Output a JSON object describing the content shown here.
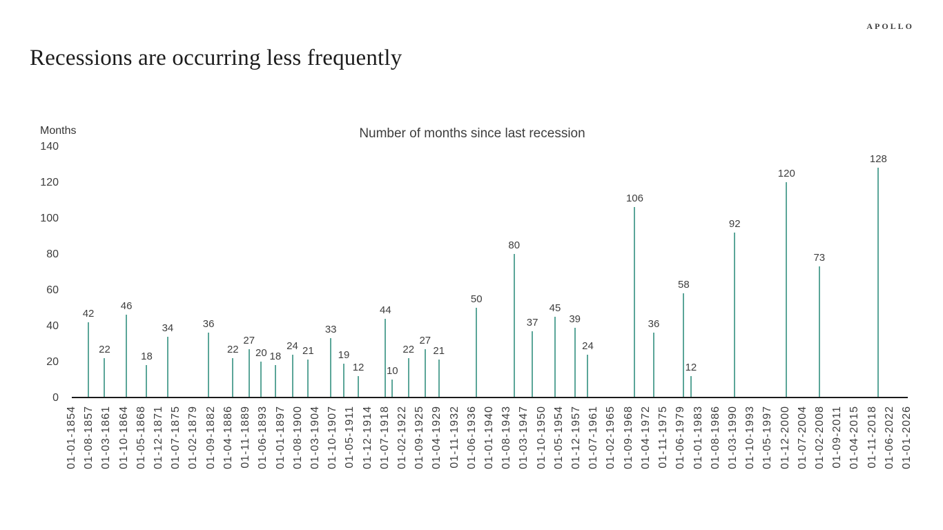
{
  "logo": "APOLLO",
  "page_title": "Recessions are occurring less frequently",
  "chart_data": {
    "type": "bar",
    "title": "Number of months since last recession",
    "y_axis_title": "Months",
    "xlabel": "",
    "ylabel": "Months",
    "ylim": [
      0,
      140
    ],
    "y_ticks": [
      0,
      20,
      40,
      60,
      80,
      100,
      120,
      140
    ],
    "grid": false,
    "legend": false,
    "bar_color": "#5aa598",
    "axis_line_color": "#1a1a1a",
    "x_axis": {
      "start_label": "01-01-1854",
      "end_label": "01-01-2026",
      "total_months": 2064,
      "tick_interval_months": 43,
      "tick_labels": [
        "01-01-1854",
        "01-08-1857",
        "01-03-1861",
        "01-10-1864",
        "01-05-1868",
        "01-12-1871",
        "01-07-1875",
        "01-02-1879",
        "01-09-1882",
        "01-04-1886",
        "01-11-1889",
        "01-06-1893",
        "01-01-1897",
        "01-08-1900",
        "01-03-1904",
        "01-10-1907",
        "01-05-1911",
        "01-12-1914",
        "01-07-1918",
        "01-02-1922",
        "01-09-1925",
        "01-04-1929",
        "01-11-1932",
        "01-06-1936",
        "01-01-1940",
        "01-08-1943",
        "01-03-1947",
        "01-10-1950",
        "01-05-1954",
        "01-12-1957",
        "01-07-1961",
        "01-02-1965",
        "01-09-1968",
        "01-04-1972",
        "01-11-1975",
        "01-06-1979",
        "01-01-1983",
        "01-08-1986",
        "01-03-1990",
        "01-10-1993",
        "01-05-1997",
        "01-12-2000",
        "01-07-2004",
        "01-02-2008",
        "01-09-2011",
        "01-04-2015",
        "01-11-2018",
        "01-06-2022",
        "01-01-2026"
      ]
    },
    "bars": [
      {
        "month_offset": 41,
        "value": 42
      },
      {
        "month_offset": 81,
        "value": 22
      },
      {
        "month_offset": 135,
        "value": 46
      },
      {
        "month_offset": 185,
        "value": 18
      },
      {
        "month_offset": 237,
        "value": 34
      },
      {
        "month_offset": 338,
        "value": 36
      },
      {
        "month_offset": 398,
        "value": 22
      },
      {
        "month_offset": 438,
        "value": 27
      },
      {
        "month_offset": 468,
        "value": 20
      },
      {
        "month_offset": 503,
        "value": 18
      },
      {
        "month_offset": 545,
        "value": 24
      },
      {
        "month_offset": 584,
        "value": 21
      },
      {
        "month_offset": 640,
        "value": 33
      },
      {
        "month_offset": 672,
        "value": 19
      },
      {
        "month_offset": 708,
        "value": 12
      },
      {
        "month_offset": 775,
        "value": 44
      },
      {
        "month_offset": 792,
        "value": 10
      },
      {
        "month_offset": 832,
        "value": 22
      },
      {
        "month_offset": 873,
        "value": 27
      },
      {
        "month_offset": 907,
        "value": 21
      },
      {
        "month_offset": 1000,
        "value": 50
      },
      {
        "month_offset": 1093,
        "value": 80
      },
      {
        "month_offset": 1138,
        "value": 37
      },
      {
        "month_offset": 1194,
        "value": 45
      },
      {
        "month_offset": 1243,
        "value": 39
      },
      {
        "month_offset": 1275,
        "value": 24
      },
      {
        "month_offset": 1391,
        "value": 106
      },
      {
        "month_offset": 1438,
        "value": 36
      },
      {
        "month_offset": 1512,
        "value": 58
      },
      {
        "month_offset": 1530,
        "value": 12
      },
      {
        "month_offset": 1638,
        "value": 92
      },
      {
        "month_offset": 1766,
        "value": 120
      },
      {
        "month_offset": 1847,
        "value": 73
      },
      {
        "month_offset": 1993,
        "value": 128
      }
    ]
  }
}
